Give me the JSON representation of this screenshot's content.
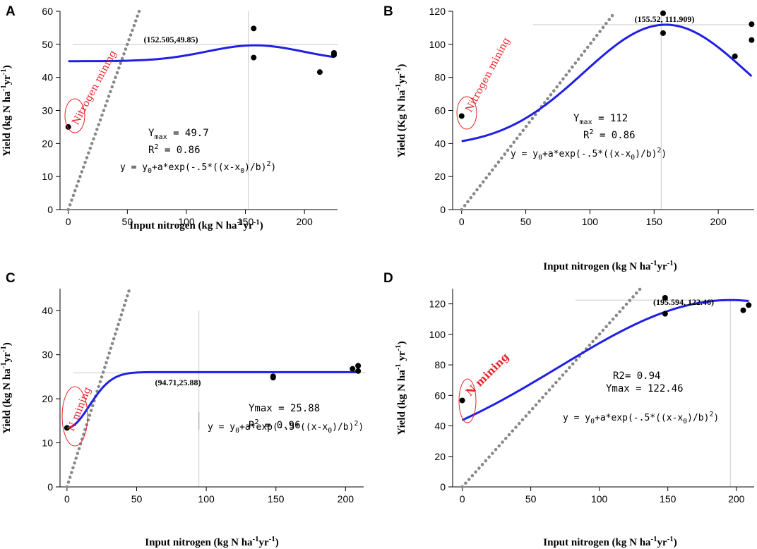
{
  "chart_data": [
    {
      "type": "scatter",
      "panel_label": "A",
      "ylabel_parts": [
        "Yield (kg N ha",
        "-1",
        "yr",
        "-1",
        ")"
      ],
      "xlabel_parts": [
        "Input nitrogen (kg N ha",
        "-1",
        "yr",
        "-1",
        ")"
      ],
      "xlim": [
        -7,
        228
      ],
      "ylim": [
        0,
        60
      ],
      "xticks": [
        0,
        50,
        100,
        150,
        200
      ],
      "yticks": [
        0,
        10,
        20,
        30,
        40,
        50,
        60
      ],
      "points": [
        [
          0,
          25
        ],
        [
          157,
          54.8
        ],
        [
          157,
          46
        ],
        [
          213,
          41.6
        ],
        [
          225,
          46.8
        ],
        [
          225,
          47.4
        ]
      ],
      "fit": {
        "y0": 44.9,
        "a": 4.8,
        "x0": 158,
        "b": 41,
        "xmax": 225,
        "label_parts": [
          "y = y",
          "0",
          "+a*exp(-.5*((x-x",
          "0",
          ")/b)",
          "2",
          ")"
        ]
      },
      "one_to_one_end": 60,
      "optimum": {
        "x": 152.505,
        "y": 49.85,
        "label": "(152.505,49.85)"
      },
      "ymax_label": [
        "Y",
        "max",
        " = 49.7"
      ],
      "r2_label": [
        "R",
        "2",
        " = 0.86"
      ],
      "mining_label": "Nitrogen mining"
    },
    {
      "type": "scatter",
      "panel_label": "B",
      "ylabel_parts": [
        "Yield (Kg N ha",
        "-1",
        "yr",
        "-1",
        ")"
      ],
      "xlabel_parts": [
        "Input nitrogen (kg N ha",
        "-1",
        "yr",
        "-1",
        ")"
      ],
      "xlim": [
        -7,
        228
      ],
      "ylim": [
        0,
        120
      ],
      "xticks": [
        0,
        50,
        100,
        150,
        200
      ],
      "yticks": [
        0,
        20,
        40,
        60,
        80,
        100,
        120
      ],
      "points": [
        [
          0,
          56.6
        ],
        [
          157,
          118.8
        ],
        [
          157,
          106.8
        ],
        [
          213,
          92.8
        ],
        [
          226,
          112.2
        ],
        [
          226,
          102.6
        ]
      ],
      "fit": {
        "y0": 38,
        "a": 73.9,
        "x0": 159,
        "b": 64,
        "xmax": 226,
        "label_parts": [
          "y = y",
          "0",
          "+a*exp(-.5*((x-x",
          "0",
          ")/b)",
          "2",
          ")"
        ]
      },
      "one_to_one_end": 118,
      "optimum": {
        "x": 155.52,
        "y": 111.909,
        "label": "(155.52, 111.909)"
      },
      "ymax_label": [
        "Y",
        "max",
        " = 112"
      ],
      "r2_label": [
        "R",
        "2",
        " = 0.86"
      ],
      "mining_label": "Nitrogen mining"
    },
    {
      "type": "scatter",
      "panel_label": "C",
      "ylabel_parts": [
        "Yield (kg N ha",
        "-1",
        "yr",
        "-1",
        ")"
      ],
      "xlabel_parts": [
        "Input nitrogen (kg N ha",
        "-1",
        "yr",
        "-1",
        ")"
      ],
      "xlim": [
        -5,
        213
      ],
      "ylim": [
        0,
        45
      ],
      "xticks": [
        0,
        50,
        100,
        150,
        200
      ],
      "yticks": [
        0,
        10,
        20,
        30,
        40
      ],
      "points": [
        [
          0,
          13.4
        ],
        [
          148,
          25.1
        ],
        [
          148,
          24.8
        ],
        [
          205,
          26.8
        ],
        [
          209,
          27.5
        ],
        [
          209,
          26.3
        ]
      ],
      "fit": {
        "y0": 26.05,
        "a": -12.65,
        "x0": 0,
        "b": 16,
        "xmax": 209,
        "label_parts": [
          "y = y",
          "0",
          "+a*exp(-.5*((x-x",
          "0",
          ")/b)",
          "2",
          ")"
        ]
      },
      "one_to_one_end": 45,
      "optimum": {
        "x": 94.71,
        "y": 25.88,
        "label": "(94.71,25.88)"
      },
      "ymax_label": [
        "Ymax = 25.88"
      ],
      "r2_label": [
        "R",
        "2",
        " = 0.96"
      ],
      "mining_label": "N mining"
    },
    {
      "type": "scatter",
      "panel_label": "D",
      "ylabel_parts": [
        "Yield (kg N ha",
        "-1",
        " yr",
        "-1",
        ")"
      ],
      "xlabel_parts": [
        "Input nitrogen (kg N ha",
        "-1",
        "yr",
        "-1",
        ")"
      ],
      "xlim": [
        -7,
        213
      ],
      "ylim": [
        0,
        130
      ],
      "xticks": [
        0,
        50,
        100,
        150,
        200
      ],
      "yticks": [
        0,
        20,
        40,
        60,
        80,
        100,
        120
      ],
      "points": [
        [
          0,
          56.7
        ],
        [
          148,
          124
        ],
        [
          148,
          113.5
        ],
        [
          205,
          115.8
        ],
        [
          209,
          119.2
        ]
      ],
      "fit": {
        "y0": 11,
        "a": 111.5,
        "x0": 195.6,
        "b": 125,
        "xmax": 209,
        "label_parts": [
          "y = y",
          "0",
          "+a*exp(-.5*((x-x",
          "0",
          ")/b)",
          "2",
          ")"
        ]
      },
      "one_to_one_end": 130,
      "optimum": {
        "x": 195.594,
        "y": 122.46,
        "label": "(195.594, 122.46)"
      },
      "ymax_label": [
        "Ymax = 122.46"
      ],
      "r2_label": [
        "R2= 0.94"
      ],
      "mining_label": "N mining"
    }
  ]
}
